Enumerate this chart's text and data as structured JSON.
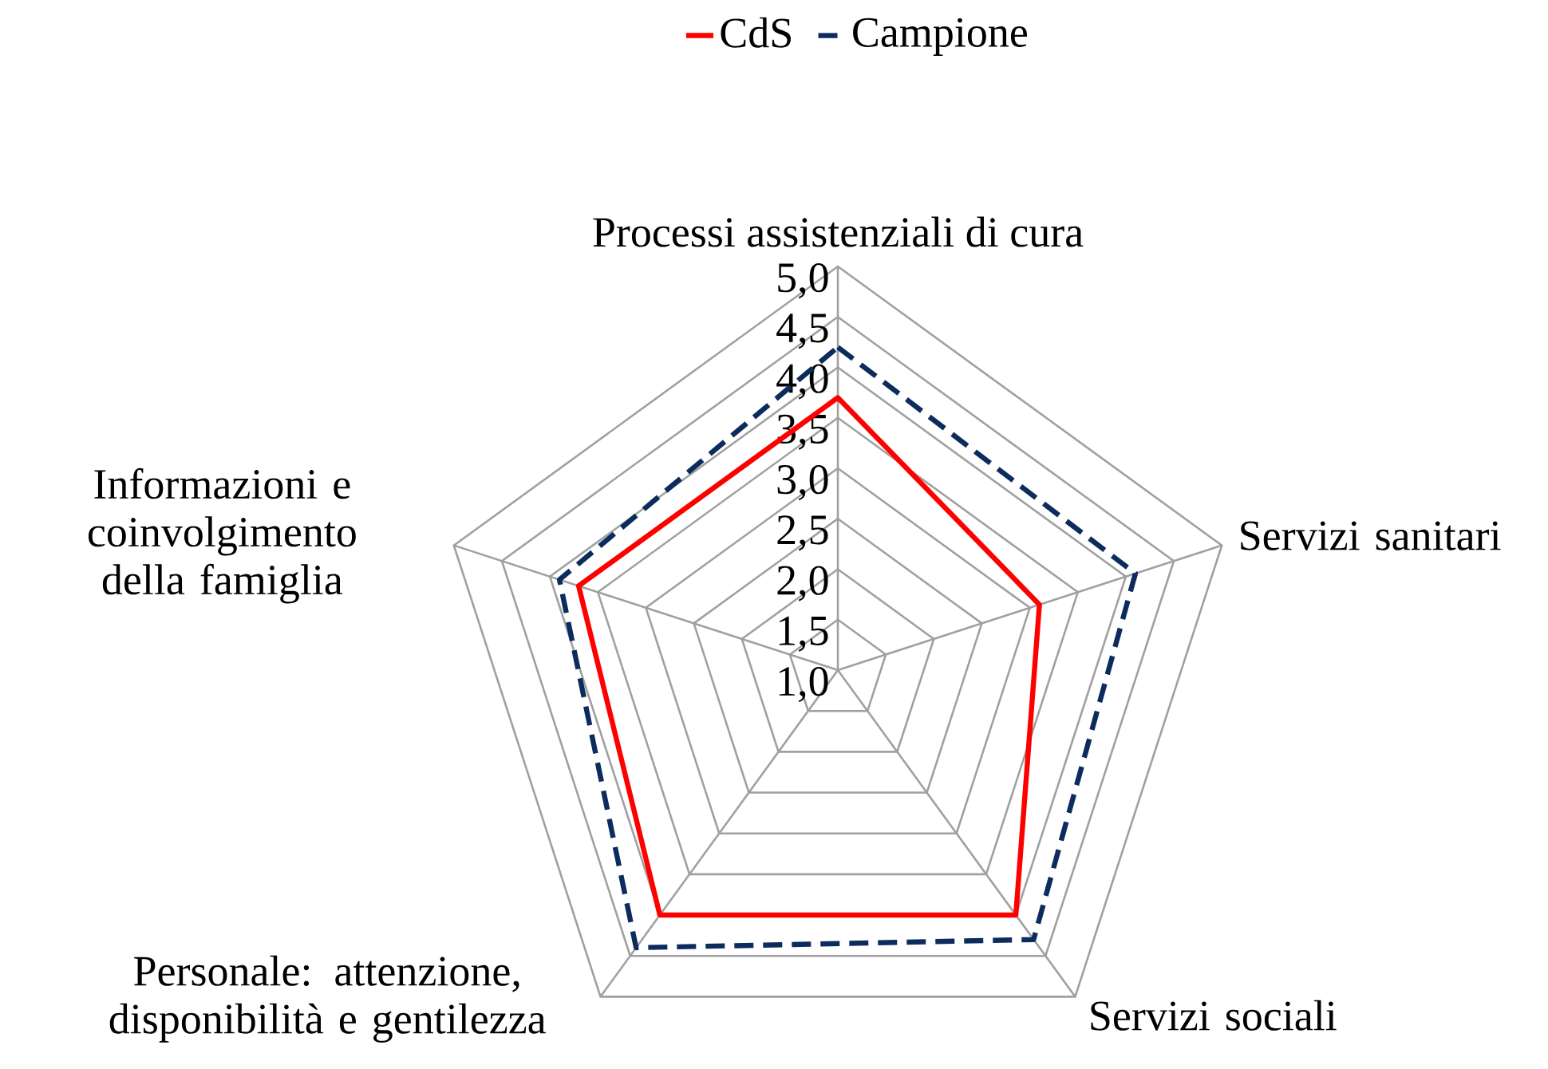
{
  "chart_data": {
    "type": "radar",
    "categories": [
      "Processi assistenziali di cura",
      "Servizi sanitari",
      "Servizi sociali",
      "Personale: attenzione, disponibilità e gentilezza",
      "Informazioni e coinvolgimento della famiglia"
    ],
    "series": [
      {
        "name": "CdS",
        "color": "#ff0000",
        "line_style": "solid",
        "values": [
          3.7,
          3.1,
          4.0,
          4.0,
          3.7
        ]
      },
      {
        "name": "Campione",
        "color": "#0d2c5e",
        "line_style": "dashed",
        "values": [
          4.2,
          4.1,
          4.3,
          4.4,
          3.9
        ]
      }
    ],
    "ylim": [
      1,
      5
    ],
    "yticks": [
      {
        "value": 1,
        "label": "1,0"
      },
      {
        "value": 1.5,
        "label": "1,5"
      },
      {
        "value": 2,
        "label": "2,0"
      },
      {
        "value": 2.5,
        "label": "2,5"
      },
      {
        "value": 3,
        "label": "3,0"
      },
      {
        "value": 3.5,
        "label": "3,5"
      },
      {
        "value": 4,
        "label": "4,0"
      },
      {
        "value": 4.5,
        "label": "4,5"
      },
      {
        "value": 5,
        "label": "5,0"
      }
    ],
    "grid": true,
    "legend": "top",
    "marker": "none"
  }
}
